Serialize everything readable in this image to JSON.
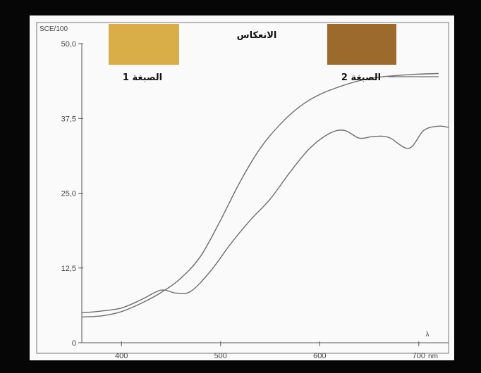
{
  "chart_data": {
    "type": "line",
    "title": "الانعكاس",
    "ylabel": "SCE/100",
    "xlabel": "λ",
    "x_unit": "nm",
    "xlim": [
      360,
      730
    ],
    "ylim": [
      0,
      50
    ],
    "x_ticks": [
      400,
      500,
      600,
      700
    ],
    "x_tick_labels": [
      "400",
      "500",
      "600",
      "700"
    ],
    "y_ticks": [
      0,
      12.5,
      25,
      37.5,
      50
    ],
    "y_tick_labels": [
      "0",
      "12,5",
      "25,0",
      "37,5",
      "50,0"
    ],
    "grid": false,
    "series": [
      {
        "name": "الصبغة 1",
        "swatch_color": "#d9ad48",
        "x": [
          360,
          380,
          400,
          420,
          440,
          460,
          480,
          500,
          520,
          540,
          560,
          580,
          600,
          620,
          640,
          660,
          680,
          700,
          720
        ],
        "y": [
          4.3,
          4.5,
          5.2,
          6.6,
          8.4,
          10.8,
          14.5,
          20.5,
          27.0,
          32.5,
          36.5,
          39.5,
          41.5,
          42.8,
          43.8,
          44.4,
          44.7,
          44.9,
          45.0
        ]
      },
      {
        "name": "الصبغة 2",
        "swatch_color": "#9c6a2c",
        "x": [
          360,
          380,
          400,
          420,
          440,
          455,
          470,
          490,
          510,
          530,
          550,
          570,
          590,
          610,
          625,
          640,
          655,
          670,
          690,
          705,
          720,
          730
        ],
        "y": [
          5.0,
          5.3,
          5.8,
          7.2,
          8.8,
          8.3,
          8.6,
          12.0,
          16.5,
          20.5,
          24.0,
          28.5,
          32.5,
          35.0,
          35.5,
          34.2,
          34.5,
          34.3,
          32.5,
          35.5,
          36.2,
          36.0
        ]
      }
    ]
  }
}
